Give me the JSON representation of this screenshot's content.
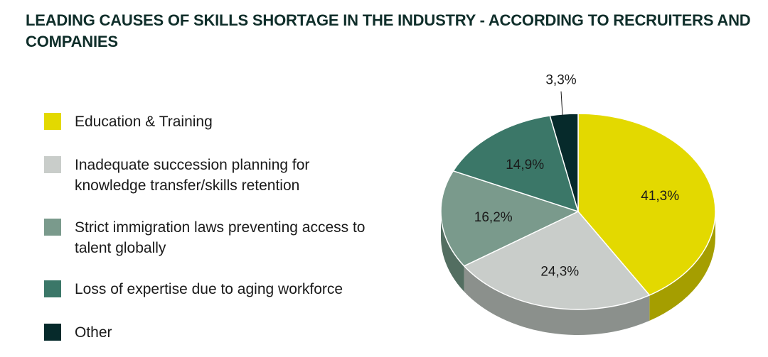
{
  "chart_data": {
    "type": "pie",
    "title": "LEADING CAUSES OF SKILLS SHORTAGE IN THE INDUSTRY - ACCORDING TO RECRUITERS AND COMPANIES",
    "slices": [
      {
        "label": "Education & Training",
        "value": 41.3,
        "display": "41,3%",
        "color": "#e3d900",
        "side_color": "#a59e00"
      },
      {
        "label": "Inadequate succession planning for knowledge transfer/skills retention",
        "value": 24.3,
        "display": "24,3%",
        "color": "#c9cdca",
        "side_color": "#8b908c"
      },
      {
        "label": "Strict immigration laws preventing access to talent globally",
        "value": 16.2,
        "display": "16,2%",
        "color": "#7a9a8c",
        "side_color": "#536e61"
      },
      {
        "label": "Loss of expertise due to aging workforce",
        "value": 14.9,
        "display": "14,9%",
        "color": "#3b7768",
        "side_color": "#26544a"
      },
      {
        "label": "Other",
        "value": 3.3,
        "display": "3,3%",
        "color": "#062a2b",
        "side_color": "#031a1b"
      }
    ],
    "legend_position": "left"
  }
}
